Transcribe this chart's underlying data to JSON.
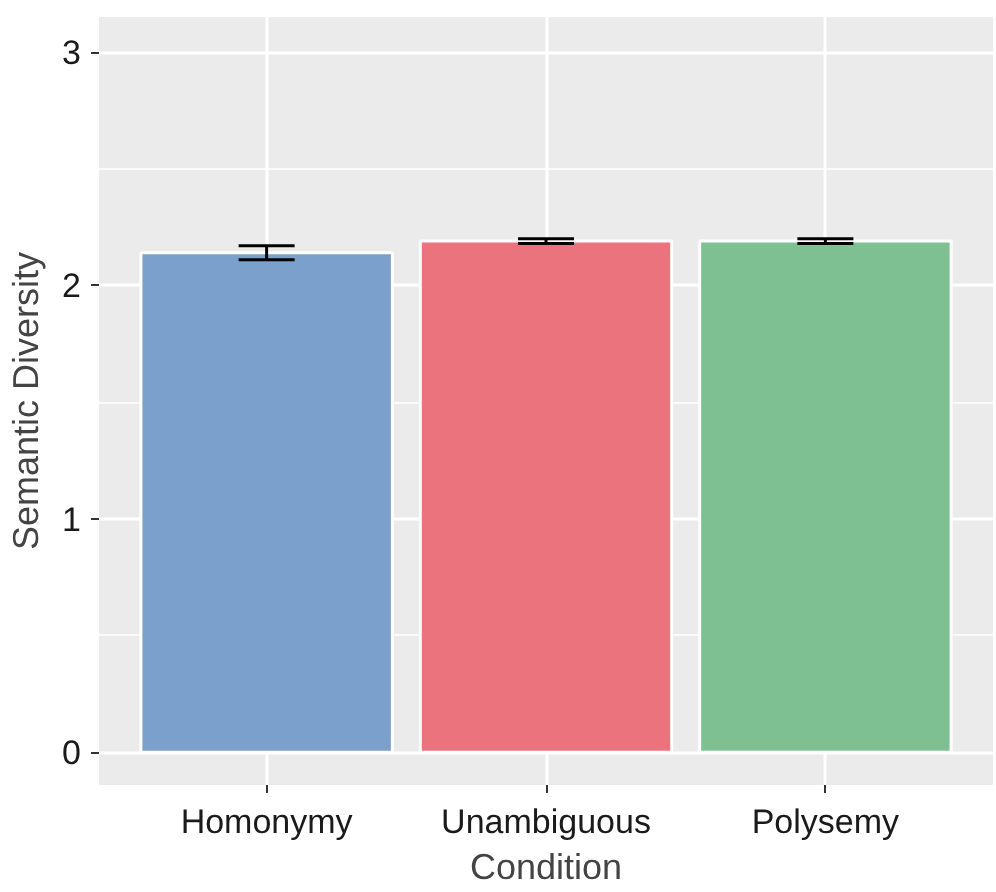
{
  "chart_data": {
    "type": "bar",
    "xlabel": "Condition",
    "ylabel": "Semantic Diversity",
    "categories": [
      "Homonymy",
      "Unambiguous",
      "Polysemy"
    ],
    "values": [
      2.14,
      2.19,
      2.19
    ],
    "errors": [
      0.03,
      0.01,
      0.01
    ],
    "colors": [
      "#7aa0cb",
      "#eb737e",
      "#7fc092"
    ],
    "ylim": [
      -0.14,
      3.15
    ],
    "yticks": [
      0,
      1,
      2,
      3
    ],
    "grid": true
  }
}
